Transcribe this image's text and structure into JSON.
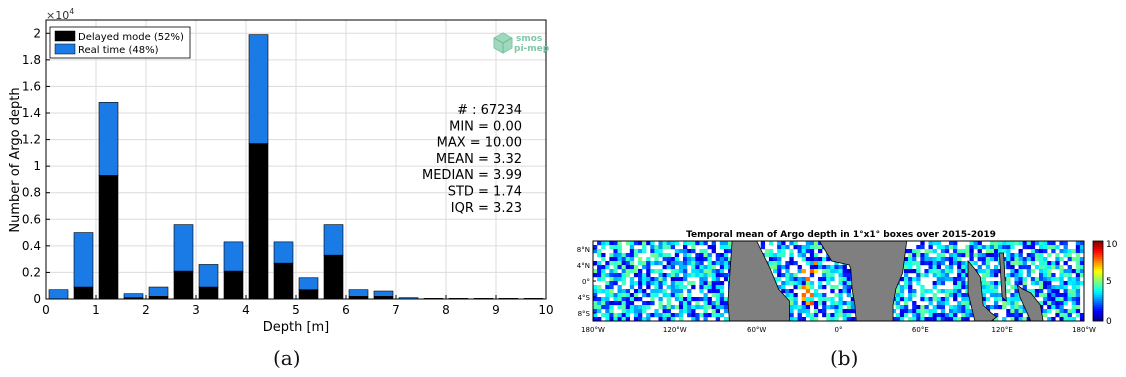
{
  "captions": {
    "a": "(a)",
    "b": "(b)"
  },
  "logo": {
    "line1": "smos",
    "line2": "pi-mep"
  },
  "colors": {
    "delayed": "#000000",
    "realtime": "#1a7ae6",
    "logo": "#7fc8a6",
    "land": "#7f7f7f"
  },
  "chart_data": [
    {
      "type": "bar",
      "stacked": true,
      "title": "",
      "xlabel": "Depth [m]",
      "ylabel": "Number of Argo depth",
      "y_multiplier": "×10",
      "y_multiplier_exp": "4",
      "xlim": [
        0,
        10
      ],
      "ylim": [
        0,
        2.1
      ],
      "xticks": [
        "0",
        "1",
        "2",
        "3",
        "4",
        "5",
        "6",
        "7",
        "8",
        "9",
        "10"
      ],
      "yticks": [
        "0",
        "0.2",
        "0.4",
        "0.6",
        "0.8",
        "1",
        "1.2",
        "1.4",
        "1.6",
        "1.8",
        "2"
      ],
      "grid": true,
      "legend_position": "top-left",
      "x": [
        0.25,
        0.75,
        1.25,
        1.75,
        2.25,
        2.75,
        3.25,
        3.75,
        4.25,
        4.75,
        5.25,
        5.75,
        6.25,
        6.75,
        7.25,
        7.75,
        8.25,
        8.75,
        9.25,
        9.75
      ],
      "series": [
        {
          "name": "Delayed mode (52%)",
          "values": [
            0.0,
            0.09,
            0.93,
            0.01,
            0.02,
            0.21,
            0.09,
            0.21,
            1.17,
            0.27,
            0.07,
            0.33,
            0.02,
            0.02,
            0.0,
            0.0,
            0.0,
            0.0,
            0.0,
            0.0
          ]
        },
        {
          "name": "Real time (48%)",
          "values": [
            0.07,
            0.41,
            0.55,
            0.03,
            0.07,
            0.35,
            0.17,
            0.22,
            0.82,
            0.16,
            0.09,
            0.23,
            0.05,
            0.04,
            0.01,
            0.005,
            0.005,
            0.005,
            0.005,
            0.005
          ]
        }
      ],
      "stats": [
        "# : 67234",
        "MIN = 0.00",
        "MAX =  10.00",
        "MEAN = 3.32",
        "MEDIAN = 3.99",
        "STD = 1.74",
        "IQR = 3.23"
      ]
    },
    {
      "type": "heatmap",
      "title": "Temporal mean of Argo depth in 1°x1° boxes over 2015-2019",
      "xticks": [
        "180°W",
        "120°W",
        "60°W",
        "0°",
        "60°E",
        "120°E",
        "180°W"
      ],
      "x_values": [
        -180,
        -120,
        -60,
        0,
        60,
        120,
        180
      ],
      "yticks": [
        "8°N",
        "4°N",
        "0°",
        "4°S",
        "8°S"
      ],
      "y_values": [
        8,
        4,
        0,
        -4,
        -8
      ],
      "xlim": [
        -180,
        180
      ],
      "ylim": [
        -10,
        10
      ],
      "colorbar": {
        "ticks": [
          "10",
          "5",
          "0"
        ],
        "values": [
          10,
          5,
          0
        ],
        "range": [
          0,
          10
        ]
      }
    }
  ]
}
